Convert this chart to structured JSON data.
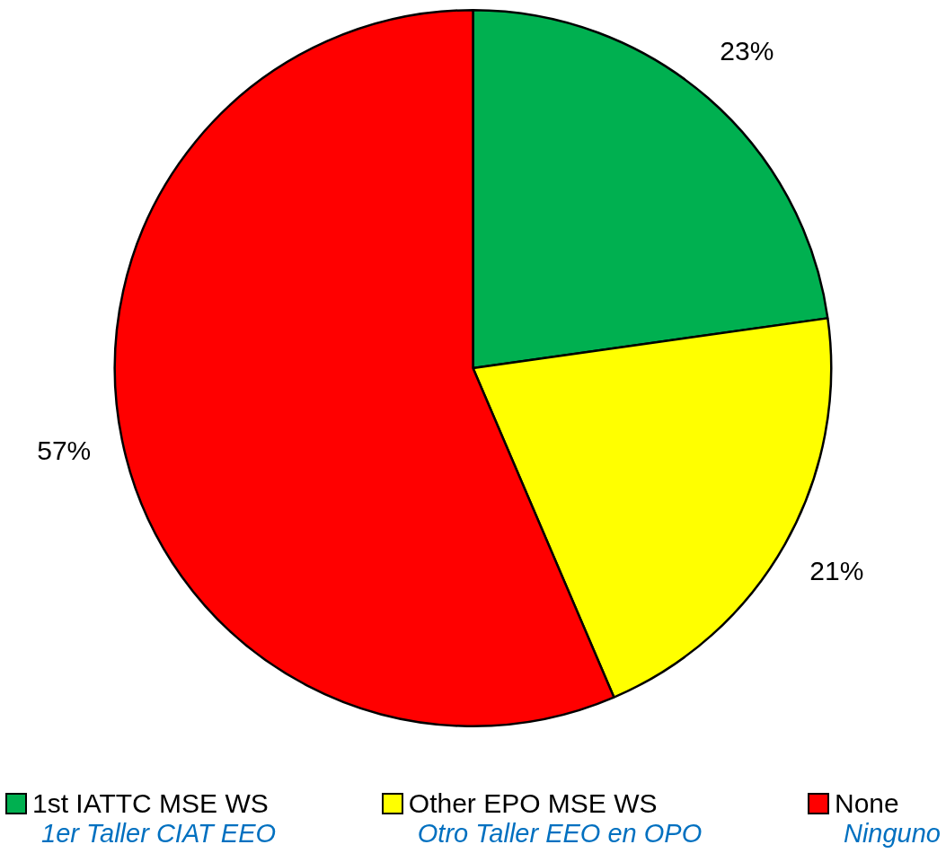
{
  "chart_data": {
    "type": "pie",
    "categories": [
      "1st IATTC MSE WS",
      "Other EPO MSE WS",
      "None"
    ],
    "annotations": [
      "1er Taller CIAT EEO",
      "Otro Taller EEO en OPO",
      "Ninguno"
    ],
    "values": [
      23,
      21,
      57
    ],
    "colors": [
      "#00b050",
      "#ffff00",
      "#ff0000"
    ],
    "value_labels": [
      "23%",
      "21%",
      "57%"
    ],
    "legend": "bottom"
  }
}
